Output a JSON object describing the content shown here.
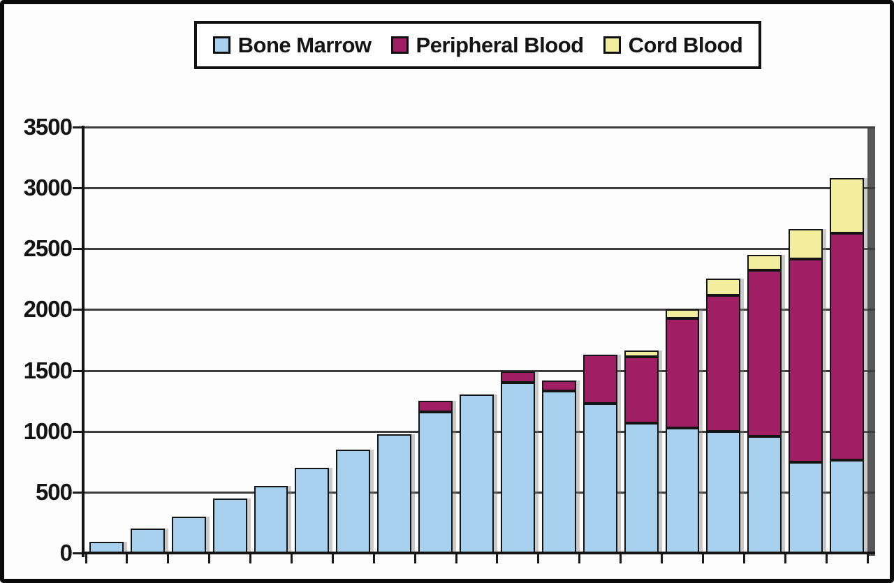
{
  "legend": {
    "items": [
      {
        "label": "Bone Marrow",
        "color": "#a7d1ee"
      },
      {
        "label": "Peripheral Blood",
        "color": "#a01f64"
      },
      {
        "label": "Cord Blood",
        "color": "#f2ee9d"
      }
    ]
  },
  "y_axis": {
    "tick_labels": [
      "0",
      "500",
      "1000",
      "1500",
      "2000",
      "2500",
      "3000",
      "3500"
    ]
  },
  "colors": {
    "bone_marrow": "#a7d1ee",
    "peripheral_blood": "#a01f64",
    "cord_blood": "#f2ee9d",
    "gridline": "#3e3e3e",
    "axis": "#141414",
    "plot_right_shadow": "#585858",
    "background": "#fdfdfd",
    "frame": "#0a0a0a"
  },
  "chart_data": {
    "type": "bar",
    "stacked": true,
    "bar_count": 19,
    "categories": [
      "",
      "",
      "",
      "",
      "",
      "",
      "",
      "",
      "",
      "",
      "",
      "",
      "",
      "",
      "",
      "",
      "",
      "",
      ""
    ],
    "series": [
      {
        "name": "Bone Marrow",
        "color": "#a7d1ee",
        "values": [
          90,
          200,
          300,
          450,
          550,
          700,
          850,
          975,
          1160,
          1300,
          1400,
          1330,
          1230,
          1065,
          1030,
          1000,
          960,
          745,
          765
        ]
      },
      {
        "name": "Peripheral Blood",
        "color": "#a01f64",
        "values": [
          0,
          0,
          0,
          0,
          0,
          0,
          0,
          0,
          90,
          0,
          90,
          85,
          400,
          545,
          900,
          1120,
          1365,
          1670,
          1865
        ]
      },
      {
        "name": "Cord Blood",
        "color": "#f2ee9d",
        "values": [
          0,
          0,
          0,
          0,
          0,
          0,
          0,
          0,
          0,
          0,
          0,
          0,
          0,
          55,
          70,
          135,
          125,
          245,
          450
        ]
      }
    ],
    "stacked_totals": [
      90,
      200,
      300,
      450,
      550,
      700,
      850,
      975,
      1250,
      1300,
      1490,
      1415,
      1630,
      1665,
      2000,
      2255,
      2450,
      2660,
      3080
    ],
    "title": "",
    "xlabel": "",
    "ylabel": "",
    "ylim": [
      0,
      3500
    ],
    "ytick_step": 500,
    "grid": true,
    "legend_position": "top",
    "x_tick_labels_visible": false
  }
}
